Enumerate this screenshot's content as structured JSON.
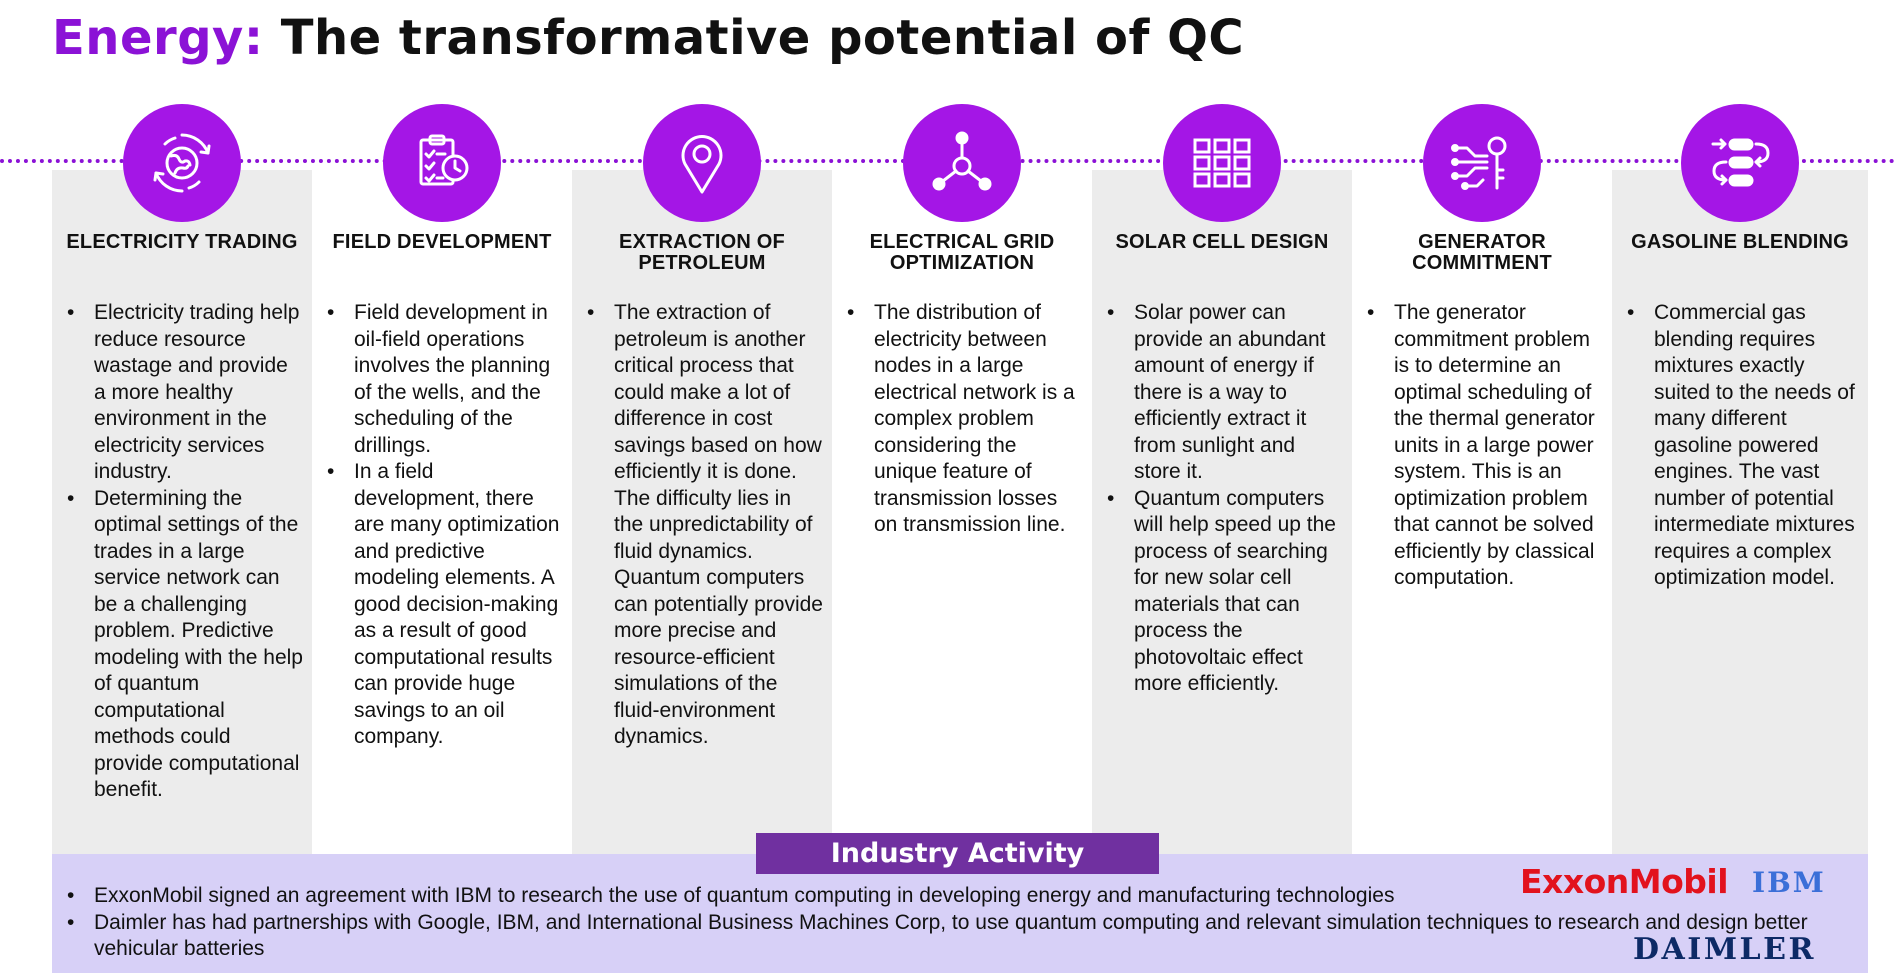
{
  "title": {
    "highlight": "Energy:",
    "rest": "The transformative potential of QC"
  },
  "columns": [
    {
      "icon": "globe-cycle-icon",
      "title": "ELECTRICITY TRADING",
      "bullets": [
        "Electricity trading help reduce resource wastage and provide a more healthy environment in the electricity services industry.",
        "Determining the optimal settings of the trades in a large service network can be a challenging problem. Predictive modeling with the help of quantum computational methods could provide computational benefit."
      ]
    },
    {
      "icon": "clipboard-clock-icon",
      "title": "FIELD DEVELOPMENT",
      "bullets": [
        "Field development in oil-field operations involves the planning of the wells, and the scheduling of the drillings.",
        "In a field development, there are many optimization and predictive modeling elements. A good decision-making as a result of good computational results can provide huge savings to an oil company."
      ]
    },
    {
      "icon": "location-pin-icon",
      "title": "EXTRACTION OF PETROLEUM",
      "bullets": [
        "The extraction of petroleum is another critical process that could make a lot of difference in cost savings based on how efficiently it is done. The difficulty lies in the unpredictability of fluid dynamics. Quantum computers can potentially provide more precise and resource-efficient simulations of the fluid-environment dynamics."
      ]
    },
    {
      "icon": "network-nodes-icon",
      "title": "ELECTRICAL GRID OPTIMIZATION",
      "bullets": [
        "The distribution of electricity between nodes in a large electrical network is a complex problem considering the unique feature of transmission losses on transmission line."
      ]
    },
    {
      "icon": "solar-panel-grid-icon",
      "title": "SOLAR CELL DESIGN",
      "bullets": [
        "Solar power can provide an abundant amount of energy if there is a way to efficiently extract it from sunlight and store it.",
        "Quantum computers will help speed up the process of searching for new solar cell materials that can process the photovoltaic effect more efficiently."
      ]
    },
    {
      "icon": "circuit-key-icon",
      "title": "GENERATOR COMMITMENT",
      "bullets": [
        "The generator commitment problem is to determine an optimal scheduling of the thermal generator units in a large power system. This is an optimization problem that cannot be solved efficiently by classical computation."
      ]
    },
    {
      "icon": "blending-flow-icon",
      "title": "GASOLINE BLENDING",
      "bullets": [
        "Commercial gas blending requires mixtures exactly suited to the needs of many different gasoline powered engines. The vast number of potential intermediate mixtures requires a complex optimization model."
      ]
    }
  ],
  "industry": {
    "title": "Industry Activity",
    "items": [
      "ExxonMobil signed an agreement with IBM to research the use of quantum computing in developing energy and manufacturing technologies",
      "Daimler has had partnerships with Google, IBM, and International Business Machines Corp, to use quantum computing and relevant simulation techniques to research and design better vehicular batteries"
    ],
    "logos": {
      "exxon": "ExxonMobil",
      "ibm": "IBM",
      "daimler": "DAIMLER"
    }
  },
  "colors": {
    "accent": "#8b12d6",
    "circle": "#a416e6",
    "panel_gray": "#ececec",
    "industry_bg": "#d7d0f7",
    "industry_title_bg": "#7030a0",
    "exxon_red": "#e2121d"
  }
}
